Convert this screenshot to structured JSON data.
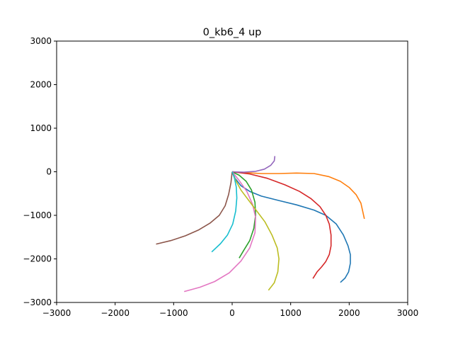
{
  "chart_data": {
    "type": "line",
    "title": "0_kb6_4 up",
    "xlabel": "",
    "ylabel": "",
    "xlim": [
      -3000,
      3000
    ],
    "ylim": [
      -3000,
      3000
    ],
    "xticks": [
      -3000,
      -2000,
      -1000,
      0,
      1000,
      2000,
      3000
    ],
    "yticks": [
      3000,
      2000,
      1000,
      0,
      -1000,
      -2000,
      -3000
    ],
    "grid": false,
    "legend": "none",
    "series": [
      {
        "color": "#1f77b4",
        "x": [
          0,
          50,
          150,
          300,
          500,
          800,
          1100,
          1400,
          1600,
          1780,
          1900,
          1980,
          2020,
          2020,
          1990,
          1930,
          1850
        ],
        "y": [
          0,
          -150,
          -320,
          -450,
          -560,
          -660,
          -760,
          -880,
          -1000,
          -1200,
          -1450,
          -1700,
          -1900,
          -2100,
          -2300,
          -2440,
          -2540
        ]
      },
      {
        "color": "#ff7f0e",
        "x": [
          0,
          200,
          500,
          800,
          1100,
          1400,
          1650,
          1850,
          2000,
          2120,
          2200,
          2260
        ],
        "y": [
          0,
          -20,
          -40,
          -40,
          -30,
          -40,
          -110,
          -220,
          -360,
          -530,
          -720,
          -1080
        ]
      },
      {
        "color": "#2ca02c",
        "x": [
          0,
          120,
          240,
          330,
          390,
          400,
          370,
          300,
          200,
          120
        ],
        "y": [
          0,
          -80,
          -220,
          -420,
          -700,
          -1000,
          -1300,
          -1580,
          -1800,
          -1980
        ]
      },
      {
        "color": "#d62728",
        "x": [
          0,
          300,
          600,
          900,
          1150,
          1350,
          1500,
          1600,
          1660,
          1690,
          1690,
          1660,
          1600,
          1530,
          1450,
          1380
        ],
        "y": [
          0,
          -50,
          -150,
          -300,
          -450,
          -620,
          -800,
          -1000,
          -1200,
          -1450,
          -1700,
          -1900,
          -2060,
          -2180,
          -2300,
          -2450
        ]
      },
      {
        "color": "#9467bd",
        "x": [
          0,
          200,
          400,
          550,
          660,
          720,
          730
        ],
        "y": [
          0,
          -10,
          10,
          60,
          150,
          250,
          360
        ]
      },
      {
        "color": "#8c564b",
        "x": [
          0,
          -20,
          -60,
          -120,
          -220,
          -380,
          -580,
          -800,
          -1050,
          -1300
        ],
        "y": [
          0,
          -250,
          -520,
          -780,
          -1000,
          -1180,
          -1340,
          -1470,
          -1580,
          -1660
        ]
      },
      {
        "color": "#e377c2",
        "x": [
          0,
          120,
          250,
          350,
          400,
          390,
          300,
          150,
          -50,
          -300,
          -550,
          -820
        ],
        "y": [
          0,
          -200,
          -450,
          -750,
          -1050,
          -1400,
          -1750,
          -2050,
          -2320,
          -2520,
          -2650,
          -2750
        ]
      },
      {
        "color": "#bcbd22",
        "x": [
          0,
          60,
          150,
          280,
          420,
          560,
          680,
          770,
          800,
          780,
          720,
          620
        ],
        "y": [
          0,
          -200,
          -420,
          -650,
          -900,
          -1150,
          -1450,
          -1750,
          -2000,
          -2300,
          -2550,
          -2720
        ]
      },
      {
        "color": "#17becf",
        "x": [
          0,
          40,
          70,
          80,
          60,
          10,
          -80,
          -200,
          -350
        ],
        "y": [
          0,
          -150,
          -350,
          -600,
          -900,
          -1200,
          -1450,
          -1650,
          -1840
        ]
      }
    ]
  }
}
